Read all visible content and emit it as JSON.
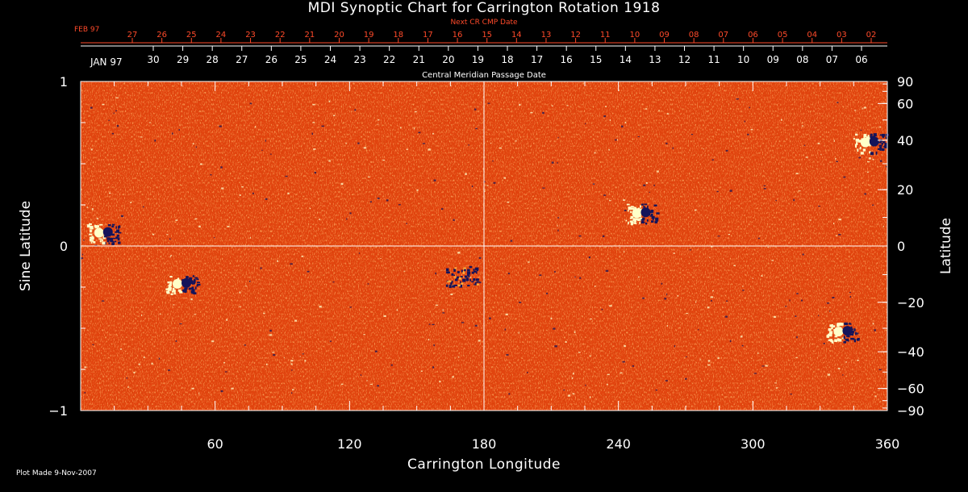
{
  "chart_data": {
    "type": "heatmap",
    "title": "MDI Synoptic Chart for Carrington Rotation 1918",
    "xlabel": "Carrington Longitude",
    "ylabel_left": "Sine Latitude",
    "ylabel_right": "Latitude",
    "xlim": [
      0,
      360
    ],
    "ylim": [
      -1,
      1
    ],
    "x_ticks": [
      "60",
      "120",
      "180",
      "240",
      "300",
      "360"
    ],
    "y_ticks_left": [
      "1",
      "0",
      "−1"
    ],
    "y_ticks_right": [
      "90",
      "60",
      "40",
      "20",
      "0",
      "−20",
      "−40",
      "−60",
      "−90"
    ],
    "y_ticks_right_values": [
      90,
      60,
      40,
      20,
      0,
      -20,
      -40,
      -60,
      -90
    ],
    "next_cr_label": "Next CR CMP Date",
    "next_cr_month": "FEB 97",
    "next_cr_days": [
      "27",
      "26",
      "25",
      "24",
      "23",
      "22",
      "21",
      "20",
      "19",
      "18",
      "17",
      "16",
      "15",
      "14",
      "13",
      "12",
      "11",
      "10",
      "09",
      "08",
      "07",
      "06",
      "05",
      "04",
      "03",
      "02"
    ],
    "cmp_month": "JAN 97",
    "cmp_days": [
      "30",
      "29",
      "28",
      "27",
      "26",
      "25",
      "24",
      "23",
      "22",
      "21",
      "20",
      "19",
      "18",
      "17",
      "16",
      "15",
      "14",
      "13",
      "12",
      "11",
      "10",
      "09",
      "08",
      "07",
      "06"
    ],
    "cmp_label": "Central Meridian Passage Date",
    "crosshair": {
      "x": 180,
      "y": 0
    },
    "active_regions": [
      {
        "lon": 10,
        "sinlat": 0.08,
        "polarity": "mixed"
      },
      {
        "lon": 45,
        "sinlat": -0.23,
        "polarity": "mixed"
      },
      {
        "lon": 170,
        "sinlat": -0.18,
        "polarity": "negative"
      },
      {
        "lon": 250,
        "sinlat": 0.2,
        "polarity": "mixed"
      },
      {
        "lon": 340,
        "sinlat": -0.52,
        "polarity": "mixed"
      },
      {
        "lon": 352,
        "sinlat": 0.63,
        "polarity": "mixed"
      }
    ],
    "colors": {
      "background": "#e2440f",
      "positive": "#ffffc8",
      "negative": "#14145a",
      "axes": "#ffffff",
      "accent_labels": "#ff4a2a"
    }
  },
  "footer": "Plot Made  9-Nov-2007"
}
